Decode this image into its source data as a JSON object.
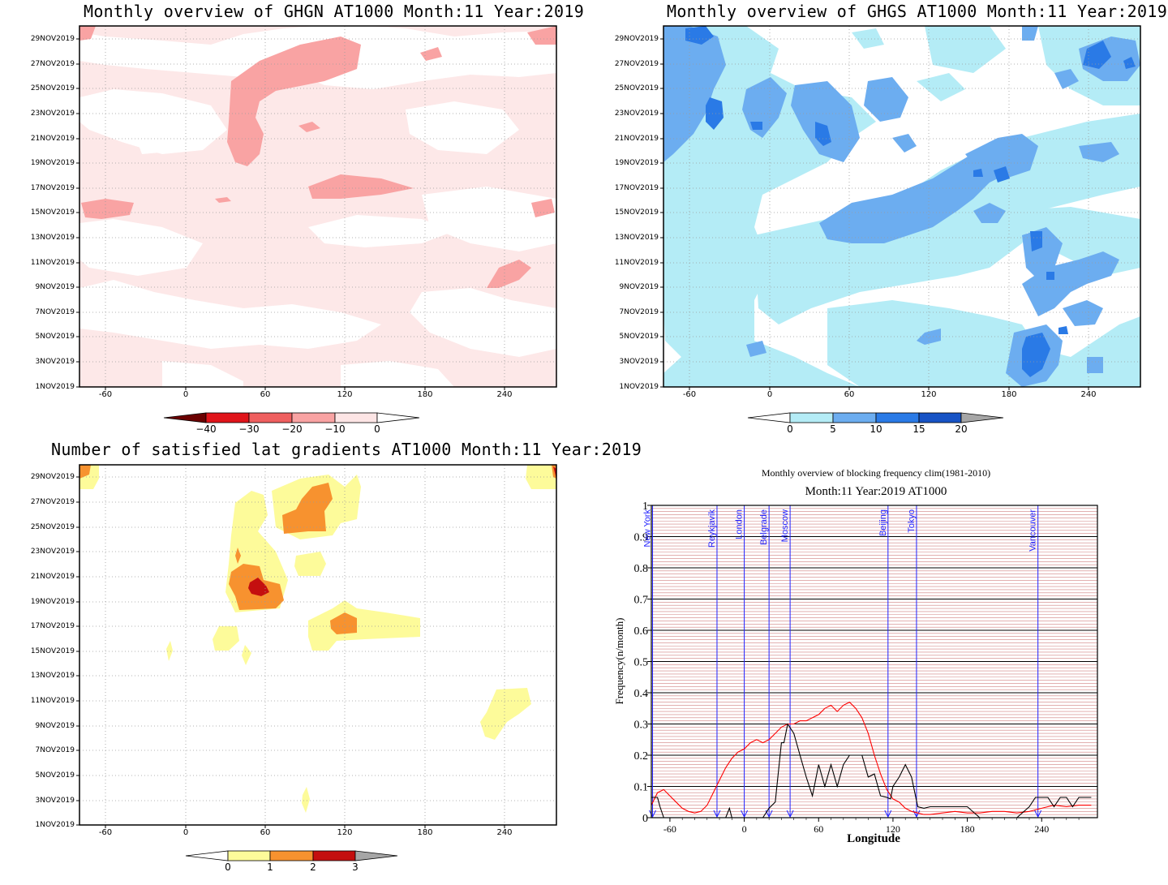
{
  "dates": [
    "29NOV2019",
    "27NOV2019",
    "25NOV2019",
    "23NOV2019",
    "21NOV2019",
    "19NOV2019",
    "17NOV2019",
    "15NOV2019",
    "13NOV2019",
    "11NOV2019",
    "9NOV2019",
    "7NOV2019",
    "5NOV2019",
    "3NOV2019",
    "1NOV2019"
  ],
  "lon_ticks": [
    "-60",
    "0",
    "60",
    "120",
    "180",
    "240"
  ],
  "panels": {
    "ghgn": {
      "title": "Monthly overview of GHGN AT1000 Month:11 Year:2019",
      "colorbar_labels": [
        "−40",
        "−30",
        "−20",
        "−10",
        "0"
      ],
      "colors": [
        "#6b0000",
        "#e0141a",
        "#ef5f5f",
        "#f9a3a3",
        "#fde5e5"
      ]
    },
    "ghgs": {
      "title": "Monthly overview of GHGS AT1000 Month:11 Year:2019",
      "colorbar_labels": [
        "0",
        "5",
        "10",
        "15",
        "20"
      ],
      "colors": [
        "#b4ecf6",
        "#6cadf0",
        "#2a7ae6",
        "#1753c5",
        "#a6a6a6"
      ]
    },
    "lat": {
      "title": "Number of satisfied lat gradients AT1000 Month:11 Year:2019",
      "colorbar_labels": [
        "0",
        "1",
        "2",
        "3"
      ],
      "colors": [
        "#fdfb9a",
        "#f7922f",
        "#c40f0f",
        "#a6a6a6"
      ]
    }
  },
  "chart_data": {
    "type": "line",
    "title": "Monthly overview of blocking frequency clim(1981-2010)",
    "subtitle": "Month:11 Year:2019  AT1000",
    "xlabel": "Longitude",
    "ylabel": "Frequency(n/month)",
    "xlim": [
      -75,
      285
    ],
    "ylim": [
      0,
      1
    ],
    "x_ticks": [
      "-60",
      "0",
      "60",
      "120",
      "180",
      "240"
    ],
    "y_ticks": [
      "0",
      "0.1",
      "0.2",
      "0.3",
      "0.4",
      "0.5",
      "0.6",
      "0.7",
      "0.8",
      "0.9",
      "1"
    ],
    "grid": true,
    "cities": [
      {
        "name": "New York",
        "lon": -74
      },
      {
        "name": "Reykjavik",
        "lon": -22
      },
      {
        "name": "London",
        "lon": 0
      },
      {
        "name": "Belgrade",
        "lon": 20
      },
      {
        "name": "Moscow",
        "lon": 37
      },
      {
        "name": "Beijing",
        "lon": 116
      },
      {
        "name": "Tokyo",
        "lon": 139
      },
      {
        "name": "Vancouver",
        "lon": 237
      }
    ],
    "series": [
      {
        "color": "#ff0000",
        "x": [
          -75,
          -70,
          -65,
          -60,
          -55,
          -50,
          -45,
          -40,
          -35,
          -30,
          -25,
          -20,
          -15,
          -10,
          -5,
          0,
          5,
          10,
          15,
          20,
          25,
          30,
          35,
          40,
          45,
          50,
          55,
          60,
          65,
          70,
          75,
          80,
          85,
          90,
          95,
          100,
          105,
          110,
          115,
          120,
          125,
          130,
          135,
          140,
          145,
          150,
          160,
          170,
          180,
          190,
          200,
          210,
          220,
          230,
          240,
          250,
          260,
          270,
          280
        ],
        "y": [
          0.04,
          0.08,
          0.09,
          0.07,
          0.05,
          0.03,
          0.02,
          0.015,
          0.02,
          0.04,
          0.08,
          0.12,
          0.16,
          0.19,
          0.21,
          0.22,
          0.24,
          0.25,
          0.24,
          0.25,
          0.27,
          0.29,
          0.3,
          0.3,
          0.31,
          0.31,
          0.32,
          0.33,
          0.35,
          0.36,
          0.34,
          0.36,
          0.37,
          0.35,
          0.32,
          0.27,
          0.2,
          0.14,
          0.09,
          0.06,
          0.05,
          0.03,
          0.02,
          0.015,
          0.01,
          0.01,
          0.015,
          0.02,
          0.015,
          0.015,
          0.02,
          0.02,
          0.015,
          0.02,
          0.03,
          0.04,
          0.035,
          0.04,
          0.04
        ]
      },
      {
        "color": "#000000",
        "x": [
          -75,
          -70,
          -68,
          -65,
          -60,
          -50,
          -40,
          -30,
          -20,
          -15,
          -12,
          -10,
          -5,
          0,
          5,
          10,
          15,
          20,
          25,
          30,
          32,
          35,
          40,
          45,
          50,
          55,
          60,
          65,
          70,
          75,
          80,
          85,
          90,
          95,
          100,
          105,
          110,
          115,
          118,
          120,
          125,
          130,
          135,
          140,
          145,
          150,
          160,
          170,
          180,
          190,
          200,
          210,
          220,
          230,
          235,
          240,
          245,
          250,
          255,
          260,
          265,
          270,
          275,
          280
        ],
        "y": [
          0.065,
          0.065,
          0.035,
          0,
          0,
          0,
          0,
          0,
          0,
          0,
          0.03,
          0,
          0,
          0,
          0,
          0,
          0,
          0.03,
          0.05,
          0.24,
          0.24,
          0.3,
          0.27,
          0.2,
          0.13,
          0.07,
          0.17,
          0.1,
          0.17,
          0.1,
          0.17,
          0.2,
          0.2,
          0.2,
          0.13,
          0.14,
          0.07,
          0.065,
          0.06,
          0.1,
          0.13,
          0.17,
          0.13,
          0.035,
          0.03,
          0.035,
          0.035,
          0.035,
          0.035,
          0,
          0,
          0,
          0,
          0.035,
          0.065,
          0.065,
          0.065,
          0.035,
          0.065,
          0.065,
          0.035,
          0.065,
          0.065,
          0.065
        ]
      }
    ]
  }
}
